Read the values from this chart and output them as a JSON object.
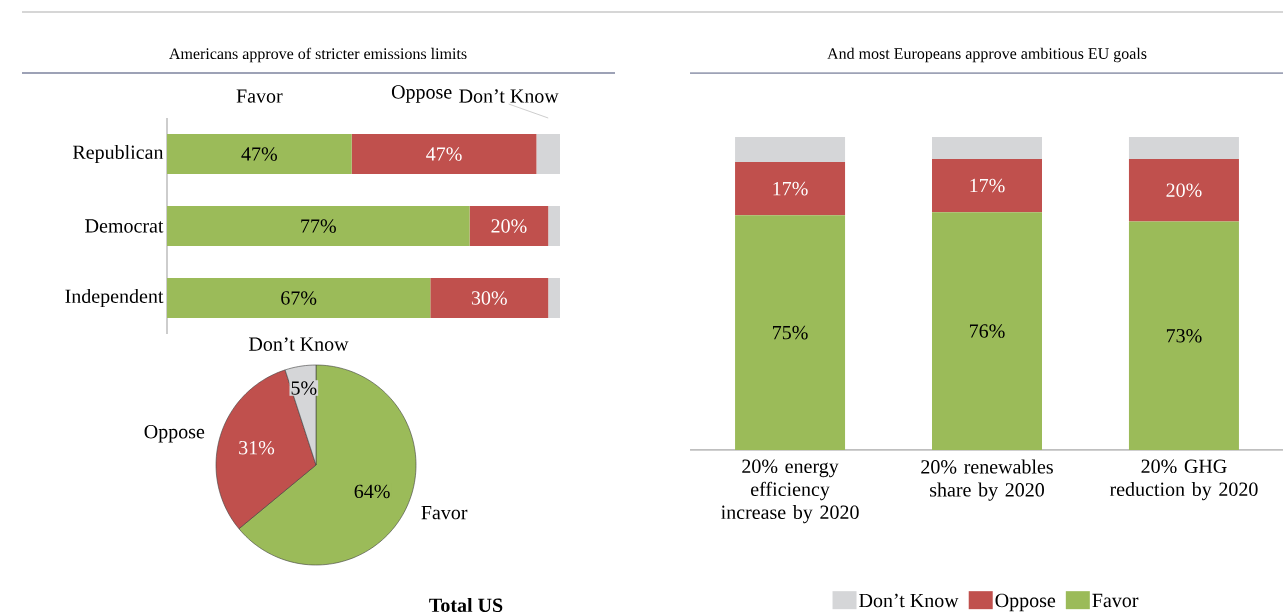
{
  "chart_data": [
    {
      "type": "bar",
      "orientation": "horizontal",
      "stacked": true,
      "title": "Americans approve of stricter emissions limits",
      "categories": [
        "Republican",
        "Democrat",
        "Independent"
      ],
      "series": [
        {
          "name": "Favor",
          "color": "#9bbb59",
          "values": [
            47,
            77,
            67
          ],
          "value_labels": [
            "47%",
            "77%",
            "67%"
          ]
        },
        {
          "name": "Oppose",
          "color": "#c0504d",
          "values": [
            47,
            20,
            30
          ],
          "value_labels": [
            "47%",
            "20%",
            "30%"
          ]
        },
        {
          "name": "Don’t Know",
          "color": "#d5d6d8",
          "values": [
            6,
            3,
            3
          ]
        }
      ]
    },
    {
      "type": "pie",
      "title": "Total US",
      "categories": [
        "Favor",
        "Oppose",
        "Don’t Know"
      ],
      "values": [
        64,
        31,
        5
      ],
      "colors": [
        "#9bbb59",
        "#c0504d",
        "#d5d6d8"
      ],
      "value_labels": [
        "64%",
        "31%",
        "5%"
      ]
    },
    {
      "type": "bar",
      "stacked": true,
      "title": "And most Europeans approve ambitious EU goals",
      "categories": [
        "20% energy efficiency increase by 2020",
        "20% renewables share by 2020",
        "20% GHG reduction by 2020"
      ],
      "legend": "bottom",
      "series": [
        {
          "name": "Favor",
          "color": "#9bbb59",
          "values": [
            75,
            76,
            73
          ],
          "value_labels": [
            "75%",
            "76%",
            "73%"
          ]
        },
        {
          "name": "Oppose",
          "color": "#c0504d",
          "values": [
            17,
            17,
            20
          ],
          "value_labels": [
            "17%",
            "17%",
            "20%"
          ]
        },
        {
          "name": "Don’t Know",
          "color": "#d5d6d8",
          "values": [
            8,
            7,
            7
          ]
        }
      ]
    }
  ]
}
